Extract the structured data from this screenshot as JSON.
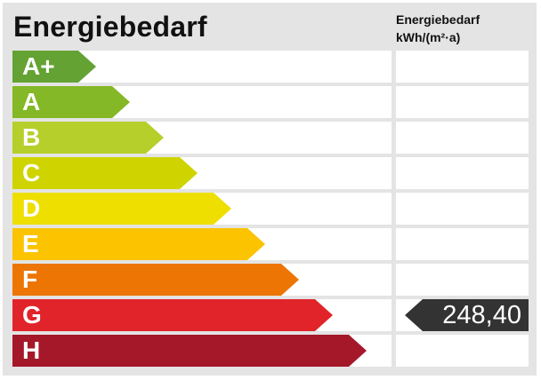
{
  "title": "Energiebedarf",
  "column_header": {
    "line1": "Energiebedarf",
    "line2": "kWh/(m²·a)"
  },
  "classes": [
    {
      "label": "A+",
      "color": "#64a233"
    },
    {
      "label": "A",
      "color": "#84b826"
    },
    {
      "label": "B",
      "color": "#b6cf2b"
    },
    {
      "label": "C",
      "color": "#cfd400"
    },
    {
      "label": "D",
      "color": "#eedf00"
    },
    {
      "label": "E",
      "color": "#fbc300"
    },
    {
      "label": "F",
      "color": "#ec7504"
    },
    {
      "label": "G",
      "color": "#e1242a"
    },
    {
      "label": "H",
      "color": "#a4182a"
    }
  ],
  "value": {
    "text": "248,40",
    "class": "G",
    "color": "#333333"
  }
}
